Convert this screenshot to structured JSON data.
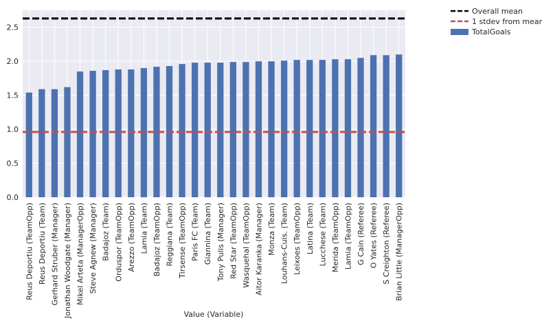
{
  "chart_data": {
    "type": "bar",
    "xlabel": "Value (Variable)",
    "ylabel": "",
    "ylim": [
      0,
      2.75
    ],
    "yticks": [
      0.0,
      0.5,
      1.0,
      1.5,
      2.0,
      2.5
    ],
    "ytick_labels": [
      "0.0",
      "0.5",
      "1.0",
      "1.5",
      "2.0",
      "2.5"
    ],
    "grid": true,
    "legend_position": "outside-top-right",
    "categories": [
      "Reus Deportiu (TeamOpp)",
      "Reus Deportiu (Team)",
      "Gerhard Struber (Manager)",
      "Jonathan Woodgate (Manager)",
      "Mikel Arteta (ManagerOpp)",
      "Steve Agnew (Manager)",
      "Badajoz (Team)",
      "Orduspor (TeamOpp)",
      "Arezzo (TeamOpp)",
      "Lamia (Team)",
      "Badajoz (TeamOpp)",
      "Reggiana (Team)",
      "Tirsense (TeamOpp)",
      "Paris FC (Team)",
      "Giannina (Team)",
      "Tony Pulis (Manager)",
      "Red Star (TeamOpp)",
      "Wasquehal (TeamOpp)",
      "Aitor Karanka (Manager)",
      "Monza (Team)",
      "Louhans-Cuis. (Team)",
      "Leixoes (TeamOpp)",
      "Latina (Team)",
      "Lucchese (Team)",
      "Merida (TeamOpp)",
      "Lamia (TeamOpp)",
      "G Cain (Referee)",
      "O Yates (Referee)",
      "S Creighton (Referee)",
      "Brian Little (ManagerOpp)"
    ],
    "series": [
      {
        "name": "TotalGoals",
        "color": "#4c72b0",
        "values": [
          1.54,
          1.59,
          1.59,
          1.62,
          1.85,
          1.86,
          1.87,
          1.88,
          1.88,
          1.9,
          1.92,
          1.93,
          1.96,
          1.98,
          1.98,
          1.98,
          1.99,
          1.99,
          2.0,
          2.0,
          2.01,
          2.02,
          2.02,
          2.02,
          2.03,
          2.03,
          2.05,
          2.09,
          2.09,
          2.1
        ]
      }
    ],
    "reference_lines": [
      {
        "name": "Overall mean",
        "value": 2.63,
        "color": "#000000",
        "style": "dashed"
      },
      {
        "name": "1 stdev from mean",
        "value": 0.96,
        "color": "#c44e52",
        "style": "dashed"
      }
    ]
  }
}
